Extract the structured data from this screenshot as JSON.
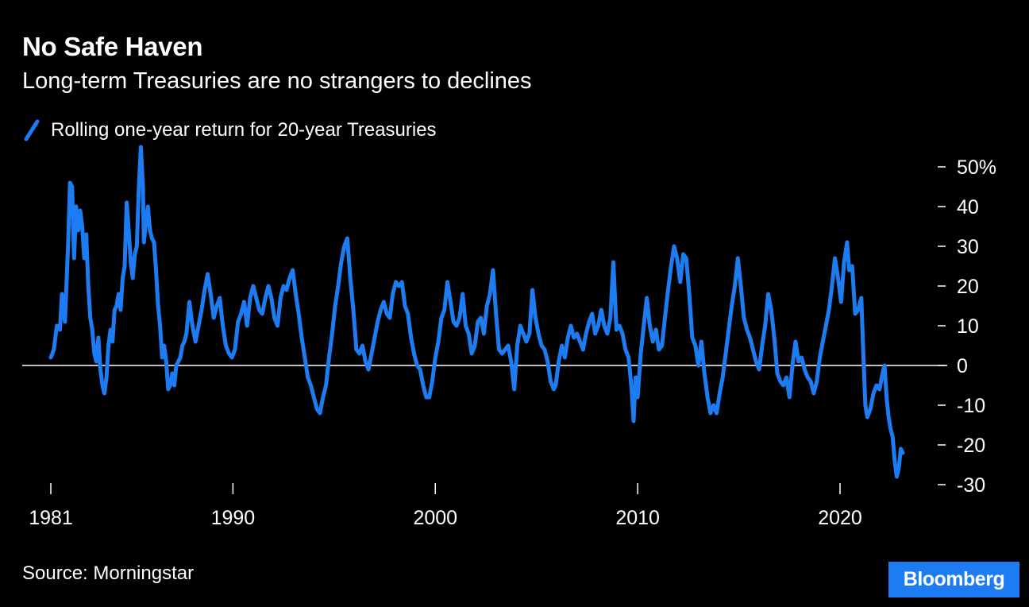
{
  "header": {
    "title": "No Safe Haven",
    "subtitle": "Long-term Treasuries are no strangers to declines"
  },
  "footer": {
    "source": "Source: Morningstar",
    "brand": "Bloomberg"
  },
  "colors": {
    "background": "#000000",
    "series": "#1e7cf2",
    "text": "#ffffff",
    "brand_bg": "#1e7cf2"
  },
  "chart_data": {
    "type": "line",
    "title": "No Safe Haven",
    "subtitle": "Long-term Treasuries are no strangers to declines",
    "xlabel": "",
    "ylabel": "",
    "xlim": [
      1981,
      2023.5
    ],
    "ylim": [
      -30,
      55
    ],
    "x_ticks": [
      1981,
      1990,
      2000,
      2010,
      2020
    ],
    "x_tick_labels": [
      "1981",
      "1990",
      "2000",
      "2010",
      "2020"
    ],
    "y_ticks": [
      50,
      40,
      30,
      20,
      10,
      0,
      -10,
      -20,
      -30
    ],
    "y_tick_labels": [
      "50%",
      "40",
      "30",
      "20",
      "10",
      "0",
      "-10",
      "-20",
      "-30"
    ],
    "zero_line": true,
    "grid": false,
    "legend_position": "top-left",
    "series": [
      {
        "name": "Rolling one-year return for 20-year Treasuries",
        "color": "#1e7cf2",
        "points": [
          [
            1981.0,
            2
          ],
          [
            1981.15,
            4
          ],
          [
            1981.3,
            10
          ],
          [
            1981.45,
            9
          ],
          [
            1981.55,
            18
          ],
          [
            1981.7,
            11
          ],
          [
            1981.85,
            30
          ],
          [
            1981.95,
            46
          ],
          [
            1982.05,
            45
          ],
          [
            1982.15,
            27
          ],
          [
            1982.25,
            40
          ],
          [
            1982.35,
            34
          ],
          [
            1982.45,
            39
          ],
          [
            1982.55,
            35
          ],
          [
            1982.65,
            27
          ],
          [
            1982.75,
            33
          ],
          [
            1982.85,
            20
          ],
          [
            1982.95,
            12
          ],
          [
            1983.05,
            9
          ],
          [
            1983.15,
            3
          ],
          [
            1983.25,
            1
          ],
          [
            1983.35,
            7
          ],
          [
            1983.45,
            -1
          ],
          [
            1983.55,
            -5
          ],
          [
            1983.65,
            -7
          ],
          [
            1983.75,
            -3
          ],
          [
            1983.85,
            5
          ],
          [
            1983.95,
            9
          ],
          [
            1984.05,
            6
          ],
          [
            1984.15,
            14
          ],
          [
            1984.25,
            15
          ],
          [
            1984.35,
            18
          ],
          [
            1984.45,
            14
          ],
          [
            1984.55,
            22
          ],
          [
            1984.65,
            25
          ],
          [
            1984.75,
            41
          ],
          [
            1984.85,
            34
          ],
          [
            1984.95,
            26
          ],
          [
            1985.05,
            22
          ],
          [
            1985.15,
            28
          ],
          [
            1985.25,
            30
          ],
          [
            1985.35,
            45
          ],
          [
            1985.45,
            55
          ],
          [
            1985.55,
            45
          ],
          [
            1985.6,
            31
          ],
          [
            1985.7,
            36
          ],
          [
            1985.8,
            40
          ],
          [
            1985.9,
            34
          ],
          [
            1986.0,
            32
          ],
          [
            1986.1,
            31
          ],
          [
            1986.2,
            24
          ],
          [
            1986.3,
            15
          ],
          [
            1986.4,
            10
          ],
          [
            1986.5,
            2
          ],
          [
            1986.6,
            5
          ],
          [
            1986.7,
            1
          ],
          [
            1986.8,
            -6
          ],
          [
            1986.9,
            -5
          ],
          [
            1987.0,
            -2
          ],
          [
            1987.1,
            -5
          ],
          [
            1987.2,
            0
          ],
          [
            1987.3,
            1
          ],
          [
            1987.4,
            2
          ],
          [
            1987.5,
            5
          ],
          [
            1987.6,
            6
          ],
          [
            1987.7,
            8
          ],
          [
            1987.85,
            16
          ],
          [
            1988.0,
            10
          ],
          [
            1988.15,
            6
          ],
          [
            1988.3,
            10
          ],
          [
            1988.45,
            14
          ],
          [
            1988.6,
            19
          ],
          [
            1988.75,
            23
          ],
          [
            1988.9,
            18
          ],
          [
            1989.05,
            12
          ],
          [
            1989.2,
            15
          ],
          [
            1989.35,
            17
          ],
          [
            1989.5,
            10
          ],
          [
            1989.65,
            5
          ],
          [
            1989.8,
            3
          ],
          [
            1989.95,
            2
          ],
          [
            1990.1,
            4
          ],
          [
            1990.25,
            11
          ],
          [
            1990.4,
            13
          ],
          [
            1990.55,
            16
          ],
          [
            1990.7,
            10
          ],
          [
            1990.85,
            17
          ],
          [
            1991.0,
            20
          ],
          [
            1991.15,
            17
          ],
          [
            1991.3,
            14
          ],
          [
            1991.45,
            13
          ],
          [
            1991.6,
            17
          ],
          [
            1991.75,
            20
          ],
          [
            1991.9,
            17
          ],
          [
            1992.05,
            12
          ],
          [
            1992.2,
            10
          ],
          [
            1992.35,
            17
          ],
          [
            1992.5,
            20
          ],
          [
            1992.65,
            19
          ],
          [
            1992.8,
            22
          ],
          [
            1992.95,
            24
          ],
          [
            1993.1,
            18
          ],
          [
            1993.25,
            13
          ],
          [
            1993.4,
            7
          ],
          [
            1993.55,
            2
          ],
          [
            1993.7,
            -3
          ],
          [
            1993.85,
            -5
          ],
          [
            1994.0,
            -8
          ],
          [
            1994.15,
            -11
          ],
          [
            1994.3,
            -12
          ],
          [
            1994.45,
            -8
          ],
          [
            1994.6,
            -5
          ],
          [
            1994.75,
            2
          ],
          [
            1994.9,
            8
          ],
          [
            1995.05,
            15
          ],
          [
            1995.2,
            20
          ],
          [
            1995.35,
            26
          ],
          [
            1995.5,
            30
          ],
          [
            1995.65,
            32
          ],
          [
            1995.8,
            22
          ],
          [
            1995.95,
            14
          ],
          [
            1996.1,
            4
          ],
          [
            1996.25,
            3
          ],
          [
            1996.4,
            5
          ],
          [
            1996.55,
            1
          ],
          [
            1996.7,
            -1
          ],
          [
            1996.85,
            3
          ],
          [
            1997.0,
            7
          ],
          [
            1997.15,
            11
          ],
          [
            1997.3,
            14
          ],
          [
            1997.45,
            16
          ],
          [
            1997.6,
            13
          ],
          [
            1997.75,
            12
          ],
          [
            1997.9,
            18
          ],
          [
            1998.05,
            21
          ],
          [
            1998.2,
            20
          ],
          [
            1998.35,
            21
          ],
          [
            1998.5,
            15
          ],
          [
            1998.65,
            13
          ],
          [
            1998.8,
            7
          ],
          [
            1998.95,
            3
          ],
          [
            1999.1,
            0
          ],
          [
            1999.25,
            -1
          ],
          [
            1999.4,
            -5
          ],
          [
            1999.55,
            -8
          ],
          [
            1999.7,
            -8
          ],
          [
            1999.85,
            -4
          ],
          [
            2000.0,
            2
          ],
          [
            2000.15,
            6
          ],
          [
            2000.3,
            12
          ],
          [
            2000.45,
            14
          ],
          [
            2000.6,
            21
          ],
          [
            2000.75,
            16
          ],
          [
            2000.9,
            11
          ],
          [
            2001.05,
            10
          ],
          [
            2001.2,
            12
          ],
          [
            2001.35,
            18
          ],
          [
            2001.5,
            10
          ],
          [
            2001.65,
            8
          ],
          [
            2001.8,
            3
          ],
          [
            2001.95,
            5
          ],
          [
            2002.1,
            11
          ],
          [
            2002.25,
            12
          ],
          [
            2002.4,
            8
          ],
          [
            2002.55,
            15
          ],
          [
            2002.7,
            18
          ],
          [
            2002.85,
            24
          ],
          [
            2003.0,
            13
          ],
          [
            2003.15,
            4
          ],
          [
            2003.3,
            3
          ],
          [
            2003.45,
            4
          ],
          [
            2003.6,
            5
          ],
          [
            2003.75,
            1
          ],
          [
            2003.9,
            -6
          ],
          [
            2004.05,
            5
          ],
          [
            2004.2,
            10
          ],
          [
            2004.35,
            8
          ],
          [
            2004.5,
            6
          ],
          [
            2004.65,
            8
          ],
          [
            2004.8,
            19
          ],
          [
            2004.95,
            12
          ],
          [
            2005.1,
            8
          ],
          [
            2005.25,
            5
          ],
          [
            2005.4,
            4
          ],
          [
            2005.55,
            1
          ],
          [
            2005.7,
            -4
          ],
          [
            2005.85,
            -6
          ],
          [
            2005.95,
            -5
          ],
          [
            2006.1,
            1
          ],
          [
            2006.25,
            5
          ],
          [
            2006.4,
            2
          ],
          [
            2006.55,
            7
          ],
          [
            2006.7,
            10
          ],
          [
            2006.85,
            7
          ],
          [
            2007.0,
            8
          ],
          [
            2007.15,
            6
          ],
          [
            2007.3,
            4
          ],
          [
            2007.45,
            8
          ],
          [
            2007.6,
            11
          ],
          [
            2007.75,
            13
          ],
          [
            2007.9,
            8
          ],
          [
            2008.05,
            10
          ],
          [
            2008.2,
            14
          ],
          [
            2008.35,
            10
          ],
          [
            2008.5,
            8
          ],
          [
            2008.65,
            12
          ],
          [
            2008.8,
            26
          ],
          [
            2008.95,
            9
          ],
          [
            2009.1,
            10
          ],
          [
            2009.25,
            8
          ],
          [
            2009.4,
            4
          ],
          [
            2009.55,
            2
          ],
          [
            2009.7,
            -6
          ],
          [
            2009.8,
            -14
          ],
          [
            2009.9,
            -3
          ],
          [
            2010.0,
            -8
          ],
          [
            2010.15,
            3
          ],
          [
            2010.3,
            10
          ],
          [
            2010.45,
            17
          ],
          [
            2010.6,
            10
          ],
          [
            2010.75,
            6
          ],
          [
            2010.9,
            9
          ],
          [
            2011.05,
            4
          ],
          [
            2011.2,
            5
          ],
          [
            2011.35,
            12
          ],
          [
            2011.5,
            19
          ],
          [
            2011.65,
            25
          ],
          [
            2011.8,
            30
          ],
          [
            2011.95,
            27
          ],
          [
            2012.1,
            21
          ],
          [
            2012.25,
            28
          ],
          [
            2012.4,
            27
          ],
          [
            2012.55,
            18
          ],
          [
            2012.7,
            7
          ],
          [
            2012.85,
            5
          ],
          [
            2013.0,
            0
          ],
          [
            2013.15,
            6
          ],
          [
            2013.3,
            -2
          ],
          [
            2013.45,
            -8
          ],
          [
            2013.6,
            -12
          ],
          [
            2013.75,
            -10
          ],
          [
            2013.9,
            -12
          ],
          [
            2014.05,
            -7
          ],
          [
            2014.2,
            -3
          ],
          [
            2014.35,
            3
          ],
          [
            2014.5,
            9
          ],
          [
            2014.65,
            15
          ],
          [
            2014.8,
            20
          ],
          [
            2014.95,
            27
          ],
          [
            2015.1,
            20
          ],
          [
            2015.25,
            12
          ],
          [
            2015.4,
            9
          ],
          [
            2015.55,
            7
          ],
          [
            2015.7,
            4
          ],
          [
            2015.85,
            1
          ],
          [
            2016.0,
            -1
          ],
          [
            2016.15,
            5
          ],
          [
            2016.3,
            10
          ],
          [
            2016.45,
            18
          ],
          [
            2016.6,
            14
          ],
          [
            2016.75,
            7
          ],
          [
            2016.9,
            -2
          ],
          [
            2017.05,
            -4
          ],
          [
            2017.2,
            -5
          ],
          [
            2017.35,
            -3
          ],
          [
            2017.5,
            -8
          ],
          [
            2017.65,
            0
          ],
          [
            2017.8,
            6
          ],
          [
            2017.95,
            1
          ],
          [
            2018.1,
            2
          ],
          [
            2018.25,
            -1
          ],
          [
            2018.4,
            -3
          ],
          [
            2018.55,
            -4
          ],
          [
            2018.7,
            -7
          ],
          [
            2018.85,
            -4
          ],
          [
            2019.0,
            2
          ],
          [
            2019.15,
            6
          ],
          [
            2019.3,
            10
          ],
          [
            2019.45,
            14
          ],
          [
            2019.6,
            20
          ],
          [
            2019.75,
            27
          ],
          [
            2019.9,
            22
          ],
          [
            2020.05,
            16
          ],
          [
            2020.2,
            26
          ],
          [
            2020.35,
            31
          ],
          [
            2020.45,
            24
          ],
          [
            2020.6,
            25
          ],
          [
            2020.75,
            13
          ],
          [
            2020.9,
            14
          ],
          [
            2021.05,
            17
          ],
          [
            2021.15,
            3
          ],
          [
            2021.25,
            -10
          ],
          [
            2021.35,
            -13
          ],
          [
            2021.5,
            -11
          ],
          [
            2021.65,
            -7
          ],
          [
            2021.8,
            -5
          ],
          [
            2021.95,
            -6
          ],
          [
            2022.1,
            -2
          ],
          [
            2022.2,
            0
          ],
          [
            2022.3,
            -8
          ],
          [
            2022.4,
            -13
          ],
          [
            2022.5,
            -16
          ],
          [
            2022.6,
            -18
          ],
          [
            2022.7,
            -24
          ],
          [
            2022.8,
            -28
          ],
          [
            2022.9,
            -26
          ],
          [
            2023.0,
            -21
          ],
          [
            2023.1,
            -22
          ]
        ]
      }
    ]
  }
}
